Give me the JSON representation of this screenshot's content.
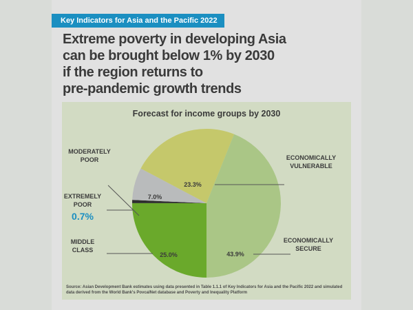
{
  "banner": "Key Indicators for Asia and the Pacific 2022",
  "headline": [
    "Extreme poverty in developing Asia",
    "can be brought below 1% by 2030",
    "if the region returns to",
    "pre-pandemic growth trends"
  ],
  "source": "Source: Asian Development Bank estimates using data presented in Table 1.1.1 of Key Indicators for Asia and the Pacific 2022 and simulated data derived from the World Bank's PovcalNet database and Poverty and Inequality Platform",
  "chart_data": {
    "type": "pie",
    "title": "Forecast for income groups by 2030",
    "slices": [
      {
        "name": "MIDDLE CLASS",
        "lines": [
          "MIDDLE",
          "CLASS"
        ],
        "value": 25.0,
        "label": "25.0%",
        "color": "#6aa92b"
      },
      {
        "name": "EXTREMELY POOR",
        "lines": [
          "EXTREMELY",
          "POOR"
        ],
        "value": 0.7,
        "label": "0.7%",
        "color": "#2e2e2e",
        "highlight_color": "#1b8fc1"
      },
      {
        "name": "MODERATELY POOR",
        "lines": [
          "MODERATELY",
          "POOR"
        ],
        "value": 7.0,
        "label": "7.0%",
        "color": "#b9bbbc"
      },
      {
        "name": "ECONOMICALLY VULNERABLE",
        "lines": [
          "ECONOMICALLY",
          "VULNERABLE"
        ],
        "value": 23.3,
        "label": "23.3%",
        "color": "#c5c86b"
      },
      {
        "name": "ECONOMICALLY SECURE",
        "lines": [
          "ECONOMICALLY",
          "SECURE"
        ],
        "value": 43.9,
        "label": "43.9%",
        "color": "#aac686"
      }
    ]
  }
}
